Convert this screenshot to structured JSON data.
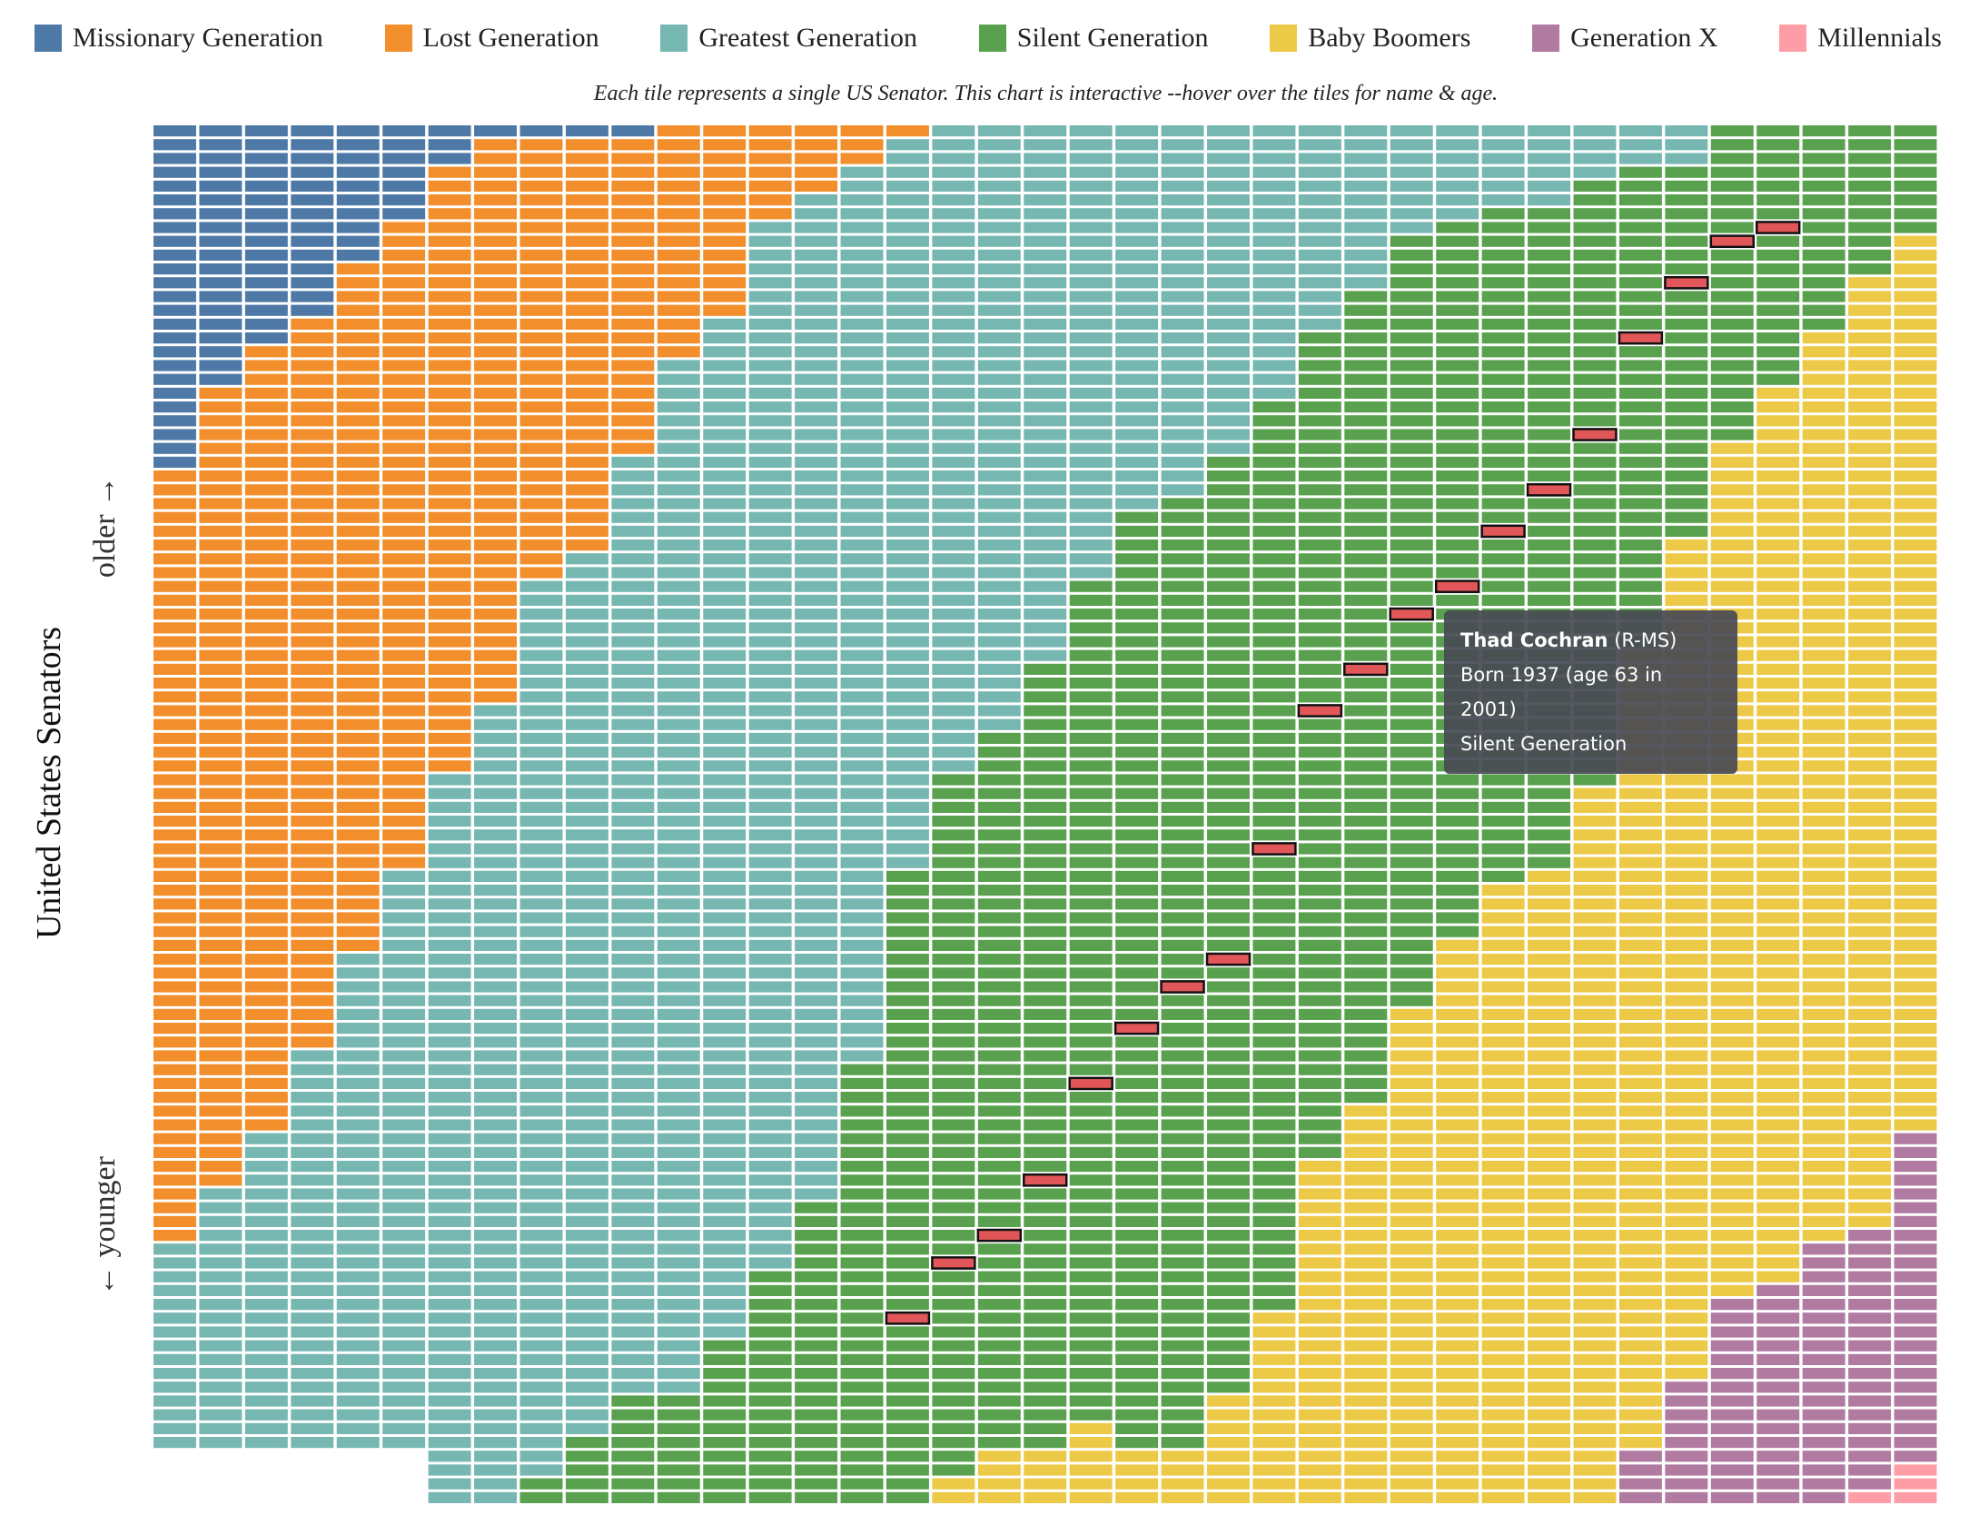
{
  "chart_data": {
    "type": "waffle_columns",
    "subtitle": "Each tile represents a single US Senator. This chart is interactive --hover over the tiles for name & age.",
    "y_label": "United States Senators",
    "older_label": "older →",
    "younger_label": "← younger",
    "series": [
      {
        "name": "Missionary Generation",
        "color": "#4e79a7",
        "values": [
          25,
          19,
          16,
          14,
          10,
          7,
          3,
          1,
          1,
          1,
          1,
          0,
          0,
          0,
          0,
          0,
          0,
          0,
          0,
          0,
          0,
          0,
          0,
          0,
          0,
          0,
          0,
          0,
          0,
          0,
          0,
          0,
          0,
          0,
          0,
          0,
          0,
          0,
          0
        ]
      },
      {
        "name": "Lost Generation",
        "color": "#f28e2b",
        "values": [
          56,
          58,
          57,
          53,
          50,
          47,
          44,
          41,
          32,
          30,
          23,
          17,
          14,
          7,
          5,
          3,
          1,
          0,
          0,
          0,
          0,
          0,
          0,
          0,
          0,
          0,
          0,
          0,
          0,
          0,
          0,
          0,
          0,
          0,
          0,
          0,
          0,
          0,
          0
        ]
      },
      {
        "name": "Greatest Generation",
        "color": "#76b7b2",
        "values": [
          15,
          19,
          23,
          29,
          36,
          42,
          53,
          58,
          65,
          64,
          68,
          75,
          74,
          76,
          73,
          65,
          53,
          47,
          44,
          39,
          33,
          28,
          27,
          24,
          20,
          15,
          12,
          8,
          7,
          6,
          6,
          4,
          3,
          3,
          0,
          0,
          0,
          0,
          0
        ]
      },
      {
        "name": "Silent Generation",
        "color": "#59a14f",
        "values": [
          0,
          0,
          0,
          0,
          0,
          0,
          0,
          0,
          2,
          5,
          8,
          8,
          12,
          17,
          22,
          32,
          46,
          51,
          52,
          57,
          61,
          68,
          69,
          68,
          66,
          60,
          59,
          56,
          52,
          49,
          48,
          44,
          35,
          27,
          23,
          19,
          15,
          11,
          8
        ]
      },
      {
        "name": "Baby Boomers",
        "color": "#edc948",
        "values": [
          0,
          0,
          0,
          0,
          0,
          0,
          0,
          0,
          0,
          0,
          0,
          0,
          0,
          0,
          0,
          0,
          0,
          2,
          4,
          4,
          6,
          4,
          4,
          8,
          14,
          25,
          29,
          36,
          41,
          45,
          46,
          52,
          58,
          61,
          62,
          65,
          66,
          69,
          65
        ]
      },
      {
        "name": "Generation X",
        "color": "#b07aa1",
        "values": [
          0,
          0,
          0,
          0,
          0,
          0,
          0,
          0,
          0,
          0,
          0,
          0,
          0,
          0,
          0,
          0,
          0,
          0,
          0,
          0,
          0,
          0,
          0,
          0,
          0,
          0,
          0,
          0,
          0,
          0,
          0,
          0,
          4,
          9,
          15,
          16,
          19,
          19,
          24
        ]
      },
      {
        "name": "Millennials",
        "color": "#ff9da7",
        "values": [
          0,
          0,
          0,
          0,
          0,
          0,
          0,
          0,
          0,
          0,
          0,
          0,
          0,
          0,
          0,
          0,
          0,
          0,
          0,
          0,
          0,
          0,
          0,
          0,
          0,
          0,
          0,
          0,
          0,
          0,
          0,
          0,
          0,
          0,
          0,
          0,
          0,
          1,
          3
        ]
      }
    ],
    "highlight": {
      "color": "#e15759",
      "rows": [
        null,
        null,
        null,
        null,
        null,
        null,
        null,
        null,
        null,
        null,
        null,
        null,
        null,
        null,
        null,
        null,
        86,
        82,
        80,
        76,
        69,
        65,
        62,
        60,
        52,
        42,
        39,
        35,
        33,
        29,
        26,
        22,
        15,
        11,
        8,
        7,
        null,
        null,
        null
      ],
      "tooltip": {
        "name": "Thad Cochran",
        "party": "(R-MS)",
        "born": "Born 1937 (age 63 in 2001)",
        "generation": "Silent Generation"
      }
    }
  }
}
